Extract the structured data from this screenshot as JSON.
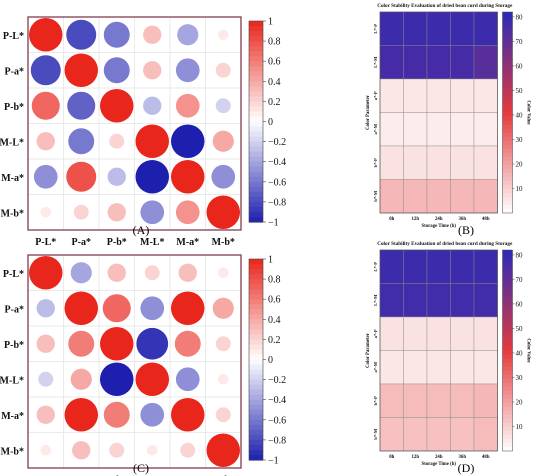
{
  "figure": {
    "panel_labels": [
      "(A)",
      "(B)",
      "(C)",
      "(D)"
    ]
  },
  "chart_data": [
    {
      "panel": "(A)",
      "type": "heatmap",
      "variant": "correlation-circles",
      "rows": [
        "P-L*",
        "P-a*",
        "P-b*",
        "M-L*",
        "M-a*",
        "M-b*"
      ],
      "cols": [
        "P-L*",
        "P-a*",
        "P-b*",
        "M-L*",
        "M-a*",
        "M-b*"
      ],
      "values": [
        [
          1.0,
          -0.8,
          -0.6,
          0.3,
          -0.4,
          0.1
        ],
        [
          -0.8,
          1.0,
          -0.6,
          0.3,
          -0.5,
          0.2
        ],
        [
          0.7,
          -0.7,
          1.0,
          -0.3,
          0.5,
          -0.2
        ],
        [
          0.3,
          -0.6,
          0.2,
          1.0,
          -1.0,
          0.4
        ],
        [
          -0.5,
          0.8,
          -0.3,
          -1.0,
          1.0,
          -0.5
        ],
        [
          0.1,
          0.2,
          0.3,
          -0.5,
          0.5,
          1.0
        ]
      ],
      "colorbar_ticks": [
        "1",
        "0.8",
        "0.6",
        "0.4",
        "0.2",
        "0",
        "−0.2",
        "−0.4",
        "−0.6",
        "−0.8",
        "−1"
      ],
      "colorbar_range": [
        -1,
        1
      ],
      "colors": {
        "positive": "#e8261c",
        "neutral": "#ffffff",
        "negative": "#1d1fae",
        "frame": "#8a4a5a"
      }
    },
    {
      "panel": "(B)",
      "type": "heatmap",
      "title": "Color Stability Evaluation of dried bean curd during Storage",
      "xlabel": "Storage Time (h)",
      "ylabel": "Color Parameter",
      "colorbar_label": "Color Value",
      "categories_x": [
        "0h",
        "12h",
        "24h",
        "36h",
        "48h"
      ],
      "categories_y": [
        "L*-P",
        "L*-M",
        "a*-P",
        "a*-M",
        "b*-P",
        "b*-M"
      ],
      "values": [
        [
          78,
          78,
          78,
          78,
          78
        ],
        [
          76,
          76,
          76,
          76,
          72
        ],
        [
          5,
          5,
          5,
          5,
          5
        ],
        [
          4,
          4,
          4,
          4,
          4
        ],
        [
          6,
          6,
          6,
          6,
          6
        ],
        [
          15,
          15,
          15,
          15,
          15
        ]
      ],
      "colorbar_ticks": [
        80,
        70,
        60,
        50,
        40,
        30,
        20,
        10
      ],
      "colorbar_range": [
        0,
        82
      ],
      "colors": {
        "low": "#ffffff",
        "mid": "#e53a3c",
        "high": "#2a2ab8"
      }
    },
    {
      "panel": "(C)",
      "type": "heatmap",
      "variant": "correlation-circles",
      "rows": [
        "P-L*",
        "P-a*",
        "P-b*",
        "M-L*",
        "M-a*",
        "M-b*"
      ],
      "cols": [
        "P-L*",
        "P-a*",
        "P-b*",
        "M-L*",
        "M-a*",
        "M-b*"
      ],
      "values": [
        [
          1.0,
          -0.4,
          0.3,
          0.2,
          0.3,
          0.1
        ],
        [
          -0.3,
          1.0,
          0.7,
          -0.5,
          1.0,
          0.4
        ],
        [
          0.3,
          0.6,
          1.0,
          -0.9,
          0.6,
          0.2
        ],
        [
          -0.2,
          0.4,
          -1.0,
          1.0,
          -0.5,
          0.1
        ],
        [
          0.3,
          1.0,
          0.6,
          -0.5,
          1.0,
          0.2
        ],
        [
          0.1,
          0.3,
          0.2,
          0.1,
          0.2,
          1.0
        ]
      ],
      "colorbar_ticks": [
        "1",
        "0.8",
        "0.6",
        "0.4",
        "0.2",
        "0",
        "−0.2",
        "−0.4",
        "−0.6",
        "−0.8",
        "−1"
      ],
      "colorbar_range": [
        -1,
        1
      ],
      "colors": {
        "positive": "#e8261c",
        "neutral": "#ffffff",
        "negative": "#1d1fae",
        "frame": "#8a4a5a"
      }
    },
    {
      "panel": "(D)",
      "type": "heatmap",
      "title": "Color Stability Evaluation of dried bean curd during Storage",
      "xlabel": "Storage Time (h)",
      "ylabel": "Color Parameter",
      "colorbar_label": "Color Value",
      "categories_x": [
        "0h",
        "12h",
        "24h",
        "36h",
        "48h"
      ],
      "categories_y": [
        "L*-P",
        "L*-M",
        "a*-P",
        "a*-M",
        "b*-P",
        "b*-M"
      ],
      "values": [
        [
          78,
          78,
          78,
          78,
          78
        ],
        [
          77,
          77,
          77,
          77,
          77
        ],
        [
          6,
          6,
          6,
          6,
          6
        ],
        [
          5,
          5,
          5,
          5,
          5
        ],
        [
          14,
          14,
          14,
          14,
          15
        ],
        [
          13,
          13,
          13,
          13,
          14
        ]
      ],
      "colorbar_ticks": [
        80,
        70,
        60,
        50,
        40,
        30,
        20,
        10
      ],
      "colorbar_range": [
        0,
        82
      ],
      "colors": {
        "low": "#ffffff",
        "mid": "#e53a3c",
        "high": "#2a2ab8"
      }
    }
  ]
}
